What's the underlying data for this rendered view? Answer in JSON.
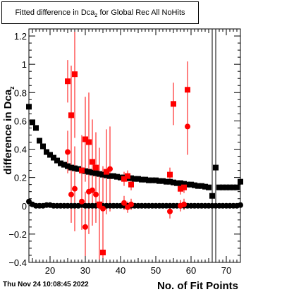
{
  "chart_data": {
    "type": "scatter",
    "title_main": "Fitted difference in Dca",
    "title_sub": "z",
    "title_tail": " for Global Rec All NoHits",
    "xlabel": "No. of Fit Points",
    "ylabel": "difference in Dca",
    "ylabel_sub": "z",
    "xlim": [
      14,
      74
    ],
    "ylim": [
      -0.4,
      1.25
    ],
    "xticks": [
      20,
      30,
      40,
      50,
      60,
      70
    ],
    "yticks": [
      -0.4,
      -0.2,
      0,
      0.2,
      0.4,
      0.6,
      0.8,
      1,
      1.2
    ],
    "tick_labels_x": [
      "20",
      "30",
      "40",
      "50",
      "60",
      "70"
    ],
    "tick_labels_y": [
      "−0.4",
      "−0.2",
      "0",
      "0.2",
      "0.4",
      "0.6",
      "0.8",
      "1",
      "1.2"
    ],
    "series": [
      {
        "marker": "square",
        "color": "#000000",
        "points": [
          [
            14,
            0.7
          ],
          [
            15,
            0.59
          ],
          [
            16,
            0.55
          ],
          [
            17,
            0.46
          ],
          [
            18,
            0.42
          ],
          [
            19,
            0.38
          ],
          [
            20,
            0.36
          ],
          [
            21,
            0.34
          ],
          [
            22,
            0.32
          ],
          [
            23,
            0.3
          ],
          [
            24,
            0.29
          ],
          [
            25,
            0.28
          ],
          [
            26,
            0.27
          ],
          [
            27,
            0.265
          ],
          [
            28,
            0.26
          ],
          [
            29,
            0.25
          ],
          [
            30,
            0.245
          ],
          [
            31,
            0.24
          ],
          [
            32,
            0.235
          ],
          [
            33,
            0.23
          ],
          [
            34,
            0.225
          ],
          [
            35,
            0.22
          ],
          [
            36,
            0.215
          ],
          [
            37,
            0.21
          ],
          [
            38,
            0.21
          ],
          [
            39,
            0.205
          ],
          [
            40,
            0.2
          ],
          [
            41,
            0.2
          ],
          [
            42,
            0.195
          ],
          [
            43,
            0.195
          ],
          [
            44,
            0.19
          ],
          [
            45,
            0.19
          ],
          [
            46,
            0.185
          ],
          [
            47,
            0.185
          ],
          [
            48,
            0.18
          ],
          [
            49,
            0.18
          ],
          [
            50,
            0.18
          ],
          [
            51,
            0.175
          ],
          [
            52,
            0.175
          ],
          [
            53,
            0.17
          ],
          [
            54,
            0.17
          ],
          [
            55,
            0.165
          ],
          [
            56,
            0.16
          ],
          [
            57,
            0.16
          ],
          [
            58,
            0.155
          ],
          [
            59,
            0.15
          ],
          [
            60,
            0.15
          ],
          [
            61,
            0.145
          ],
          [
            62,
            0.14
          ],
          [
            63,
            0.14
          ],
          [
            64,
            0.135
          ],
          [
            65,
            0.13
          ],
          [
            66,
            0.07
          ],
          [
            67,
            0.27
          ],
          [
            68,
            0.13
          ],
          [
            69,
            0.13
          ],
          [
            70,
            0.13
          ],
          [
            71,
            0.13
          ],
          [
            72,
            0.13
          ],
          [
            73,
            0.13
          ],
          [
            74,
            0.17
          ]
        ],
        "errors": {
          "66": [
            -1,
            2
          ],
          "67": [
            -1,
            2
          ]
        }
      },
      {
        "marker": "circle",
        "color": "#000000",
        "points": [
          [
            14,
            0.03
          ],
          [
            15,
            0.01
          ],
          [
            16,
            0.0
          ],
          [
            17,
            0.0
          ],
          [
            18,
            0.0
          ],
          [
            19,
            0.005
          ],
          [
            20,
            0.005
          ],
          [
            21,
            0.0
          ],
          [
            22,
            0.0
          ],
          [
            23,
            0.0
          ],
          [
            24,
            0.0
          ],
          [
            25,
            0.0
          ],
          [
            26,
            0.0
          ],
          [
            27,
            0.0
          ],
          [
            28,
            0.0
          ],
          [
            29,
            0.005
          ],
          [
            30,
            0.0
          ],
          [
            31,
            0.0
          ],
          [
            32,
            0.0
          ],
          [
            33,
            0.0
          ],
          [
            34,
            0.0
          ],
          [
            35,
            0.0
          ],
          [
            36,
            0.0
          ],
          [
            37,
            0.0
          ],
          [
            38,
            0.0
          ],
          [
            39,
            0.0
          ],
          [
            40,
            0.0
          ],
          [
            41,
            0.0
          ],
          [
            42,
            0.0
          ],
          [
            43,
            0.0
          ],
          [
            44,
            0.0
          ],
          [
            45,
            0.0
          ],
          [
            46,
            0.0
          ],
          [
            47,
            0.0
          ],
          [
            48,
            0.0
          ],
          [
            49,
            0.0
          ],
          [
            50,
            0.0
          ],
          [
            51,
            0.0
          ],
          [
            52,
            0.0
          ],
          [
            53,
            0.0
          ],
          [
            54,
            0.0
          ],
          [
            55,
            0.0
          ],
          [
            56,
            0.0
          ],
          [
            57,
            0.0
          ],
          [
            58,
            0.0
          ],
          [
            59,
            0.0
          ],
          [
            60,
            0.0
          ],
          [
            61,
            0.0
          ],
          [
            62,
            0.0
          ],
          [
            63,
            0.0
          ],
          [
            64,
            0.0
          ],
          [
            65,
            0.0
          ],
          [
            66,
            0.0
          ],
          [
            67,
            0.0
          ],
          [
            68,
            0.0
          ],
          [
            69,
            0.0
          ],
          [
            70,
            0.0
          ],
          [
            71,
            0.0
          ],
          [
            72,
            0.0
          ],
          [
            73,
            0.0
          ],
          [
            74,
            0.005
          ]
        ]
      },
      {
        "marker": "square",
        "color": "#ff0000",
        "points": [
          [
            25,
            0.88,
            0.15
          ],
          [
            26,
            0.64,
            0.35
          ],
          [
            27,
            0.93,
            0.45
          ],
          [
            29,
            0.25,
            0.25
          ],
          [
            30,
            0.47,
            0.3
          ],
          [
            31,
            0.45,
            0.35
          ],
          [
            32,
            0.31,
            0.3
          ],
          [
            33,
            0.27,
            0.25
          ],
          [
            34,
            0.01,
            0.4
          ],
          [
            35,
            -0.33,
            0.6
          ],
          [
            36,
            0.24,
            0.3
          ],
          [
            41,
            0.19,
            0.05
          ],
          [
            42,
            0.21,
            0.04
          ],
          [
            43,
            0.15,
            0.04
          ],
          [
            54,
            0.22,
            0.05
          ],
          [
            55,
            0.72,
            0.15
          ],
          [
            57,
            0.12,
            0.04
          ],
          [
            58,
            0.13,
            0.04
          ],
          [
            59,
            0.82,
            0.2
          ]
        ]
      },
      {
        "marker": "circle",
        "color": "#ff0000",
        "points": [
          [
            25,
            0.38,
            0.15
          ],
          [
            26,
            0.08,
            0.2
          ],
          [
            27,
            0.12,
            0.3
          ],
          [
            29,
            0.03,
            0.2
          ],
          [
            30,
            -0.15,
            0.25
          ],
          [
            31,
            0.1,
            0.3
          ],
          [
            32,
            0.11,
            0.25
          ],
          [
            33,
            0.08,
            0.2
          ],
          [
            34,
            0.0,
            0.2
          ],
          [
            35,
            -0.02,
            0.3
          ],
          [
            37,
            0.26,
            0.3
          ],
          [
            41,
            0.02,
            0.05
          ],
          [
            42,
            -0.01,
            0.04
          ],
          [
            43,
            0.01,
            0.04
          ],
          [
            54,
            -0.04,
            0.05
          ],
          [
            57,
            0.0,
            0.04
          ],
          [
            58,
            0.01,
            0.04
          ],
          [
            59,
            0.56,
            0.2
          ]
        ]
      }
    ]
  },
  "footer": {
    "timestamp": "Thu Nov 24 10:08:45 2022"
  }
}
